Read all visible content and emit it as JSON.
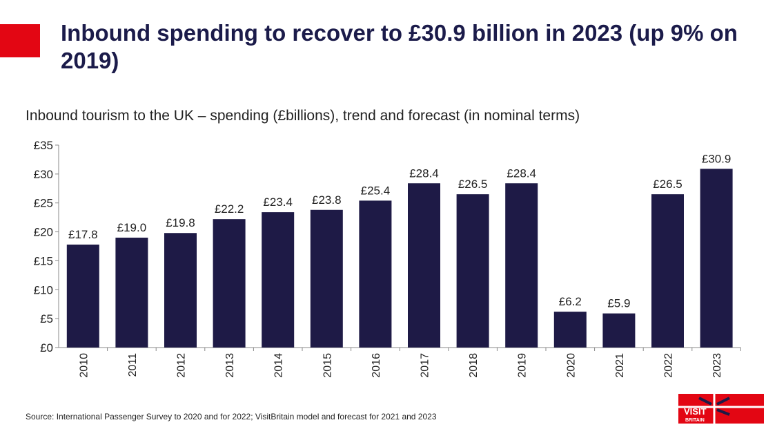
{
  "title": "Inbound spending to recover to £30.9 billion in 2023 (up 9% on 2019)",
  "source": "Source: International Passenger Survey to 2020 and for 2022; VisitBritain model and forecast for 2021 and 2023",
  "logo_text": "VISIT BRITAIN",
  "colors": {
    "bar": "#1e1a46",
    "accent": "#e30613",
    "title": "#1b1b4a"
  },
  "chart_data": {
    "type": "bar",
    "title": "Inbound tourism to the UK – spending (£billions), trend and forecast (in nominal terms)",
    "categories": [
      "2010",
      "2011",
      "2012",
      "2013",
      "2014",
      "2015",
      "2016",
      "2017",
      "2018",
      "2019",
      "2020",
      "2021",
      "2022",
      "2023"
    ],
    "values": [
      17.8,
      19.0,
      19.8,
      22.2,
      23.4,
      23.8,
      25.4,
      28.4,
      26.5,
      28.4,
      6.2,
      5.9,
      26.5,
      30.9
    ],
    "data_labels": [
      "£17.8",
      "£19.0",
      "£19.8",
      "£22.2",
      "£23.4",
      "£23.8",
      "£25.4",
      "£28.4",
      "£26.5",
      "£28.4",
      "£6.2",
      "£5.9",
      "£26.5",
      "£30.9"
    ],
    "yticks": [
      0,
      5,
      10,
      15,
      20,
      25,
      30,
      35
    ],
    "ytick_labels": [
      "£0",
      "£5",
      "£10",
      "£15",
      "£20",
      "£25",
      "£30",
      "£35"
    ],
    "ylim": [
      0,
      35
    ],
    "grid": false,
    "legend": "none"
  }
}
